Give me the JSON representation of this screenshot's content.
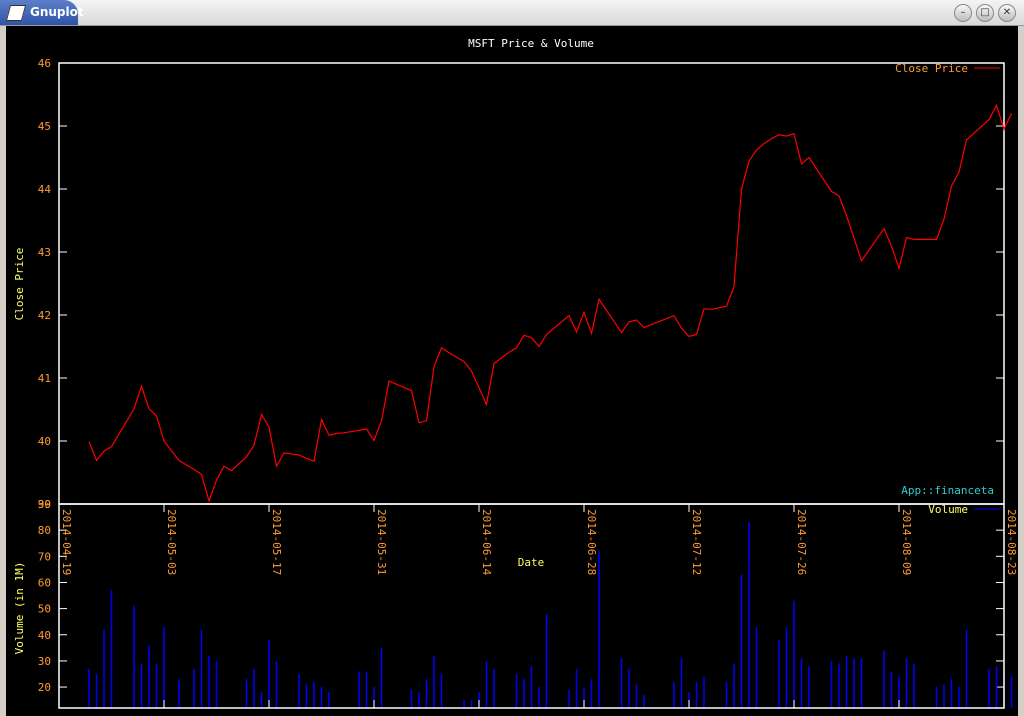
{
  "window": {
    "title": "Gnuplot",
    "minimize_icon": "minimize-icon",
    "maximize_icon": "maximize-icon",
    "close_icon": "close-icon"
  },
  "colors": {
    "background": "#000000",
    "axes": "#ffffff",
    "ticks": "#ff9c33",
    "title": "#ffffff",
    "price_line": "#ff0000",
    "volume_bars": "#0000ff",
    "legend_price": "#ff9c33",
    "legend_volume": "#ffff66",
    "credit": "#33cccc",
    "xlabel": "#ffff66",
    "ylabel": "#ffff66"
  },
  "chart_data": [
    {
      "type": "line",
      "title": "MSFT Price & Volume",
      "ylabel": "Close Price",
      "legend": "Close Price",
      "legend_position": "top-right",
      "credit": "App::financeta",
      "ylim": [
        39,
        46
      ],
      "yticks": [
        "39",
        "40",
        "41",
        "42",
        "43",
        "44",
        "45",
        "46"
      ],
      "x_range": [
        "2014-04-19",
        "2014-08-23"
      ],
      "series": [
        {
          "name": "Close Price",
          "points": [
            [
              "2014-04-23",
              39.99
            ],
            [
              "2014-04-24",
              39.69
            ],
            [
              "2014-04-25",
              39.84
            ],
            [
              "2014-04-26",
              39.91
            ],
            [
              "2014-04-29",
              40.51
            ],
            [
              "2014-04-30",
              40.87
            ],
            [
              "2014-05-01",
              40.51
            ],
            [
              "2014-05-02",
              40.4
            ],
            [
              "2014-05-03",
              40.0
            ],
            [
              "2014-05-05",
              39.69
            ],
            [
              "2014-05-07",
              39.55
            ],
            [
              "2014-05-08",
              39.47
            ],
            [
              "2014-05-09",
              39.05
            ],
            [
              "2014-05-10",
              39.38
            ],
            [
              "2014-05-11",
              39.6
            ],
            [
              "2014-05-12",
              39.53
            ],
            [
              "2014-05-14",
              39.75
            ],
            [
              "2014-05-15",
              39.93
            ],
            [
              "2014-05-16",
              40.42
            ],
            [
              "2014-05-17",
              40.22
            ],
            [
              "2014-05-18",
              39.6
            ],
            [
              "2014-05-19",
              39.81
            ],
            [
              "2014-05-21",
              39.78
            ],
            [
              "2014-05-22",
              39.72
            ],
            [
              "2014-05-23",
              39.68
            ],
            [
              "2014-05-24",
              40.34
            ],
            [
              "2014-05-25",
              40.09
            ],
            [
              "2014-05-26",
              40.12
            ],
            [
              "2014-05-27",
              40.13
            ],
            [
              "2014-05-30",
              40.19
            ],
            [
              "2014-05-31",
              40.01
            ],
            [
              "2014-06-01",
              40.32
            ],
            [
              "2014-06-02",
              40.95
            ],
            [
              "2014-06-05",
              40.8
            ],
            [
              "2014-06-06",
              40.29
            ],
            [
              "2014-06-07",
              40.32
            ],
            [
              "2014-06-08",
              41.18
            ],
            [
              "2014-06-09",
              41.48
            ],
            [
              "2014-06-10",
              41.4
            ],
            [
              "2014-06-12",
              41.26
            ],
            [
              "2014-06-13",
              41.11
            ],
            [
              "2014-06-15",
              40.58
            ],
            [
              "2014-06-16",
              41.23
            ],
            [
              "2014-06-18",
              41.41
            ],
            [
              "2014-06-19",
              41.48
            ],
            [
              "2014-06-20",
              41.68
            ],
            [
              "2014-06-21",
              41.64
            ],
            [
              "2014-06-22",
              41.5
            ],
            [
              "2014-06-23",
              41.69
            ],
            [
              "2014-06-26",
              41.99
            ],
            [
              "2014-06-27",
              41.73
            ],
            [
              "2014-06-28",
              42.04
            ],
            [
              "2014-06-29",
              41.71
            ],
            [
              "2014-06-30",
              42.25
            ],
            [
              "2014-07-03",
              41.72
            ],
            [
              "2014-07-04",
              41.89
            ],
            [
              "2014-07-05",
              41.92
            ],
            [
              "2014-07-06",
              41.8
            ],
            [
              "2014-07-10",
              41.99
            ],
            [
              "2014-07-11",
              41.79
            ],
            [
              "2014-07-12",
              41.66
            ],
            [
              "2014-07-13",
              41.69
            ],
            [
              "2014-07-14",
              42.1
            ],
            [
              "2014-07-15",
              42.09
            ],
            [
              "2014-07-17",
              42.14
            ],
            [
              "2014-07-18",
              42.45
            ],
            [
              "2014-07-19",
              44.0
            ],
            [
              "2014-07-20",
              44.44
            ],
            [
              "2014-07-21",
              44.62
            ],
            [
              "2014-07-22",
              44.72
            ],
            [
              "2014-07-23",
              44.8
            ],
            [
              "2014-07-24",
              44.86
            ],
            [
              "2014-07-25",
              44.84
            ],
            [
              "2014-07-26",
              44.88
            ],
            [
              "2014-07-27",
              44.4
            ],
            [
              "2014-07-28",
              44.5
            ],
            [
              "2014-07-31",
              43.96
            ],
            [
              "2014-08-01",
              43.89
            ],
            [
              "2014-08-02",
              43.58
            ],
            [
              "2014-08-03",
              43.22
            ],
            [
              "2014-08-04",
              42.86
            ],
            [
              "2014-08-07",
              43.37
            ],
            [
              "2014-08-08",
              43.09
            ],
            [
              "2014-08-09",
              42.74
            ],
            [
              "2014-08-10",
              43.23
            ],
            [
              "2014-08-11",
              43.2
            ],
            [
              "2014-08-14",
              43.2
            ],
            [
              "2014-08-15",
              43.52
            ],
            [
              "2014-08-16",
              44.05
            ],
            [
              "2014-08-17",
              44.27
            ],
            [
              "2014-08-18",
              44.78
            ],
            [
              "2014-08-21",
              45.1
            ],
            [
              "2014-08-22",
              45.33
            ],
            [
              "2014-08-23",
              44.95
            ],
            [
              "2014-08-24",
              45.2
            ]
          ]
        }
      ]
    },
    {
      "type": "bar",
      "xlabel": "Date",
      "ylabel": "Volume (in 1M)",
      "legend": "Volume",
      "legend_position": "top-right",
      "ylim": [
        12,
        90
      ],
      "yticks": [
        "20",
        "30",
        "40",
        "50",
        "60",
        "70",
        "80",
        "90"
      ],
      "x_range": [
        "2014-04-19",
        "2014-08-23"
      ],
      "x_ticks": [
        "2014-04-19",
        "2014-05-03",
        "2014-05-17",
        "2014-05-31",
        "2014-06-14",
        "2014-06-28",
        "2014-07-12",
        "2014-07-26",
        "2014-08-09",
        "2014-08-23"
      ],
      "series": [
        {
          "name": "Volume",
          "points": [
            [
              "2014-04-23",
              27
            ],
            [
              "2014-04-24",
              25
            ],
            [
              "2014-04-25",
              42
            ],
            [
              "2014-04-26",
              57
            ],
            [
              "2014-04-29",
              51
            ],
            [
              "2014-04-30",
              29
            ],
            [
              "2014-05-01",
              36
            ],
            [
              "2014-05-02",
              29
            ],
            [
              "2014-05-03",
              43
            ],
            [
              "2014-05-05",
              23
            ],
            [
              "2014-05-07",
              27
            ],
            [
              "2014-05-08",
              42
            ],
            [
              "2014-05-09",
              32
            ],
            [
              "2014-05-10",
              30
            ],
            [
              "2014-05-14",
              23
            ],
            [
              "2014-05-15",
              27
            ],
            [
              "2014-05-16",
              18
            ],
            [
              "2014-05-17",
              38
            ],
            [
              "2014-05-18",
              30
            ],
            [
              "2014-05-21",
              25
            ],
            [
              "2014-05-22",
              21
            ],
            [
              "2014-05-23",
              22
            ],
            [
              "2014-05-24",
              20
            ],
            [
              "2014-05-25",
              18
            ],
            [
              "2014-05-29",
              26
            ],
            [
              "2014-05-30",
              26
            ],
            [
              "2014-05-31",
              20
            ],
            [
              "2014-06-01",
              35
            ],
            [
              "2014-06-05",
              19
            ],
            [
              "2014-06-06",
              18
            ],
            [
              "2014-06-07",
              23
            ],
            [
              "2014-06-08",
              32
            ],
            [
              "2014-06-09",
              25
            ],
            [
              "2014-06-12",
              15
            ],
            [
              "2014-06-13",
              15
            ],
            [
              "2014-06-14",
              18
            ],
            [
              "2014-06-15",
              30
            ],
            [
              "2014-06-16",
              27
            ],
            [
              "2014-06-19",
              25
            ],
            [
              "2014-06-20",
              23
            ],
            [
              "2014-06-21",
              28
            ],
            [
              "2014-06-22",
              20
            ],
            [
              "2014-06-23",
              48
            ],
            [
              "2014-06-26",
              19
            ],
            [
              "2014-06-27",
              27
            ],
            [
              "2014-06-28",
              20
            ],
            [
              "2014-06-29",
              23
            ],
            [
              "2014-06-30",
              72
            ],
            [
              "2014-07-03",
              31
            ],
            [
              "2014-07-04",
              27
            ],
            [
              "2014-07-05",
              21
            ],
            [
              "2014-07-06",
              17
            ],
            [
              "2014-07-10",
              22
            ],
            [
              "2014-07-11",
              31
            ],
            [
              "2014-07-12",
              18
            ],
            [
              "2014-07-13",
              22
            ],
            [
              "2014-07-14",
              24
            ],
            [
              "2014-07-17",
              22
            ],
            [
              "2014-07-18",
              29
            ],
            [
              "2014-07-19",
              63
            ],
            [
              "2014-07-20",
              83
            ],
            [
              "2014-07-21",
              43
            ],
            [
              "2014-07-24",
              38
            ],
            [
              "2014-07-25",
              43
            ],
            [
              "2014-07-26",
              53
            ],
            [
              "2014-07-27",
              31
            ],
            [
              "2014-07-28",
              28
            ],
            [
              "2014-07-31",
              30
            ],
            [
              "2014-08-01",
              29
            ],
            [
              "2014-08-02",
              32
            ],
            [
              "2014-08-03",
              31
            ],
            [
              "2014-08-04",
              31
            ],
            [
              "2014-08-07",
              34
            ],
            [
              "2014-08-08",
              26
            ],
            [
              "2014-08-09",
              24
            ],
            [
              "2014-08-10",
              31
            ],
            [
              "2014-08-11",
              29
            ],
            [
              "2014-08-14",
              20
            ],
            [
              "2014-08-15",
              21
            ],
            [
              "2014-08-16",
              23
            ],
            [
              "2014-08-17",
              20
            ],
            [
              "2014-08-18",
              42
            ],
            [
              "2014-08-21",
              27
            ],
            [
              "2014-08-22",
              28
            ],
            [
              "2014-08-23",
              25
            ],
            [
              "2014-08-24",
              24
            ]
          ]
        }
      ]
    }
  ]
}
